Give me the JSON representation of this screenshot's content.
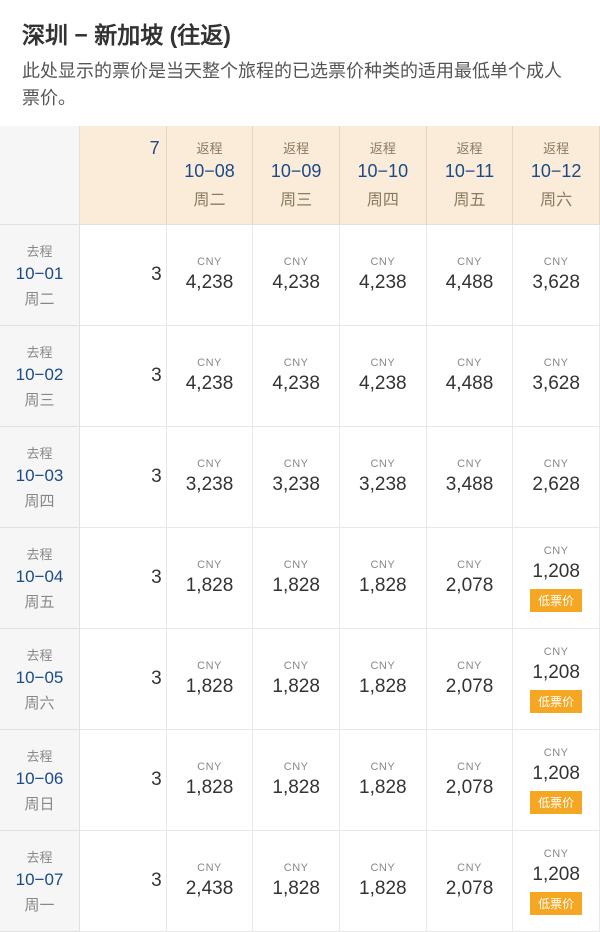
{
  "header": {
    "title": "深圳 − 新加坡 (往返)",
    "subtitle": "此处显示的票价是当天整个旅程的已选票价种类的适用最低单个成人票价。"
  },
  "labels": {
    "return_leg": "返程",
    "depart_leg": "去程",
    "currency": "CNY",
    "low_fare": "低票价"
  },
  "columns": [
    {
      "date": "7",
      "day": "",
      "cut": true
    },
    {
      "date": "10−08",
      "day": "周二"
    },
    {
      "date": "10−09",
      "day": "周三"
    },
    {
      "date": "10−10",
      "day": "周四"
    },
    {
      "date": "10−11",
      "day": "周五"
    },
    {
      "date": "10−12",
      "day": "周六"
    }
  ],
  "rows": [
    {
      "date": "10−01",
      "day": "周二",
      "cells": [
        {
          "price": "3",
          "cut": true
        },
        {
          "price": "4,238"
        },
        {
          "price": "4,238"
        },
        {
          "price": "4,238"
        },
        {
          "price": "4,488"
        },
        {
          "price": "3,628"
        }
      ]
    },
    {
      "date": "10−02",
      "day": "周三",
      "cells": [
        {
          "price": "3",
          "cut": true
        },
        {
          "price": "4,238"
        },
        {
          "price": "4,238"
        },
        {
          "price": "4,238"
        },
        {
          "price": "4,488"
        },
        {
          "price": "3,628"
        }
      ]
    },
    {
      "date": "10−03",
      "day": "周四",
      "cells": [
        {
          "price": "3",
          "cut": true
        },
        {
          "price": "3,238"
        },
        {
          "price": "3,238"
        },
        {
          "price": "3,238"
        },
        {
          "price": "3,488"
        },
        {
          "price": "2,628"
        }
      ]
    },
    {
      "date": "10−04",
      "day": "周五",
      "cells": [
        {
          "price": "3",
          "cut": true
        },
        {
          "price": "1,828"
        },
        {
          "price": "1,828"
        },
        {
          "price": "1,828"
        },
        {
          "price": "2,078"
        },
        {
          "price": "1,208",
          "low": true
        }
      ]
    },
    {
      "date": "10−05",
      "day": "周六",
      "cells": [
        {
          "price": "3",
          "cut": true
        },
        {
          "price": "1,828"
        },
        {
          "price": "1,828"
        },
        {
          "price": "1,828"
        },
        {
          "price": "2,078"
        },
        {
          "price": "1,208",
          "low": true
        }
      ]
    },
    {
      "date": "10−06",
      "day": "周日",
      "cells": [
        {
          "price": "3",
          "cut": true
        },
        {
          "price": "1,828"
        },
        {
          "price": "1,828"
        },
        {
          "price": "1,828"
        },
        {
          "price": "2,078"
        },
        {
          "price": "1,208",
          "low": true
        }
      ]
    },
    {
      "date": "10−07",
      "day": "周一",
      "cells": [
        {
          "price": "3",
          "cut": true
        },
        {
          "price": "2,438"
        },
        {
          "price": "1,828"
        },
        {
          "price": "1,828"
        },
        {
          "price": "2,078"
        },
        {
          "price": "1,208",
          "low": true
        }
      ]
    }
  ]
}
